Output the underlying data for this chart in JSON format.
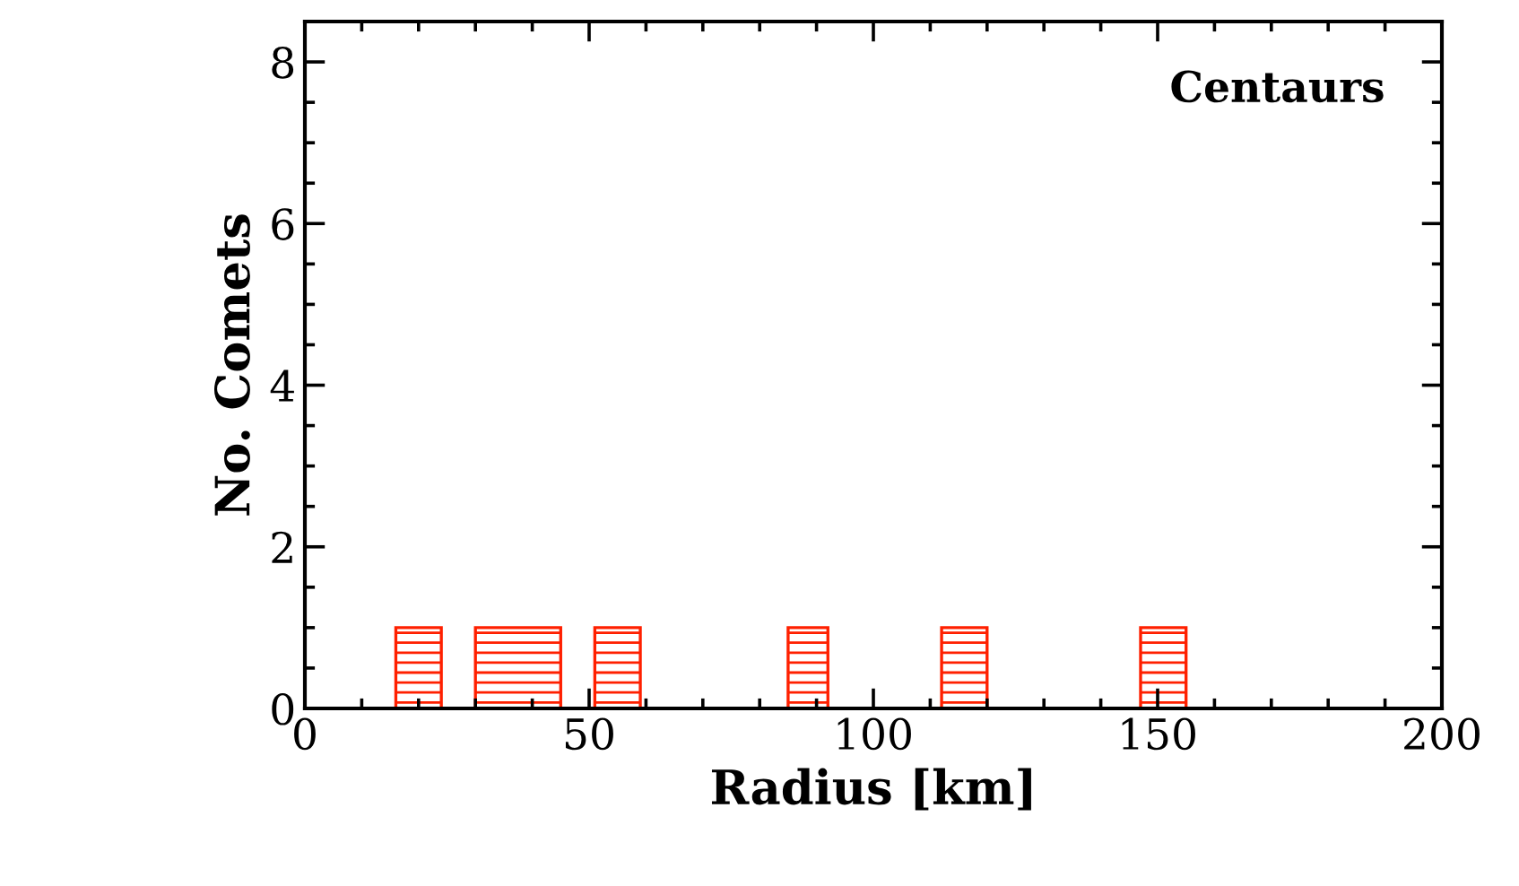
{
  "chart_data": {
    "type": "histogram",
    "xlabel": "Radius [km]",
    "ylabel": "No. Comets",
    "annotations": [
      "Centaurs"
    ],
    "bins": [
      16,
      24,
      30,
      45,
      51,
      59,
      85,
      92,
      112,
      120,
      147,
      155
    ],
    "values": [
      1,
      0,
      1,
      0,
      1,
      0,
      1,
      0,
      1,
      0,
      1
    ],
    "color": "#ff2000",
    "xlim": [
      0,
      200
    ],
    "ylim": [
      0,
      8.5
    ],
    "xticks": [
      0,
      50,
      100,
      150,
      200
    ],
    "yticks": [
      0,
      2,
      4,
      6,
      8
    ],
    "grid": false
  }
}
